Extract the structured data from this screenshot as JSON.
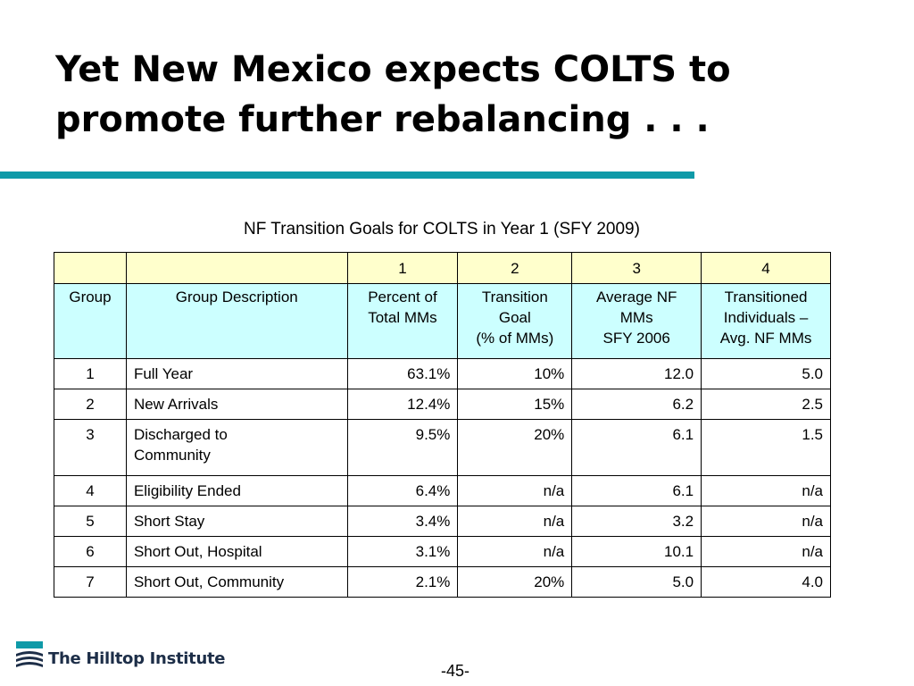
{
  "slide": {
    "title_line1": "Yet New Mexico expects COLTS to",
    "title_line2": "promote further rebalancing . . .",
    "table_caption": "NF Transition Goals for COLTS in Year 1 (SFY 2009)",
    "page_number": "-45-",
    "rule_color": "#0f9aa8"
  },
  "table": {
    "number_row": [
      "",
      "",
      "1",
      "2",
      "3",
      "4"
    ],
    "header_row": [
      [
        "Group"
      ],
      [
        "Group Description"
      ],
      [
        "Percent of",
        "Total MMs"
      ],
      [
        "Transition",
        "Goal",
        "(% of MMs)"
      ],
      [
        "Average NF",
        "MMs",
        "SFY 2006"
      ],
      [
        "Transitioned",
        "Individuals –",
        "Avg. NF MMs"
      ]
    ],
    "rows": [
      {
        "group": "1",
        "desc": [
          "Full Year"
        ],
        "pct": "63.1%",
        "goal": "10%",
        "avg": "12.0",
        "trans": "5.0"
      },
      {
        "group": "2",
        "desc": [
          "New Arrivals"
        ],
        "pct": "12.4%",
        "goal": "15%",
        "avg": "6.2",
        "trans": "2.5"
      },
      {
        "group": "3",
        "desc": [
          "Discharged to",
          "Community"
        ],
        "pct": "9.5%",
        "goal": "20%",
        "avg": "6.1",
        "trans": "1.5"
      },
      {
        "group": "4",
        "desc": [
          "Eligibility Ended"
        ],
        "pct": "6.4%",
        "goal": "n/a",
        "avg": "6.1",
        "trans": "n/a"
      },
      {
        "group": "5",
        "desc": [
          "Short Stay"
        ],
        "pct": "3.4%",
        "goal": "n/a",
        "avg": "3.2",
        "trans": "n/a"
      },
      {
        "group": "6",
        "desc": [
          "Short Out, Hospital"
        ],
        "pct": "3.1%",
        "goal": "n/a",
        "avg": "10.1",
        "trans": "n/a"
      },
      {
        "group": "7",
        "desc": [
          "Short Out, Community"
        ],
        "pct": "2.1%",
        "goal": "20%",
        "avg": "5.0",
        "trans": "4.0"
      }
    ],
    "number_row_color": "#ffffcc",
    "header_row_color": "#ccffff"
  },
  "footer": {
    "logo_text": "The Hilltop Institute",
    "logo_icon": "hilltop-logo-icon"
  }
}
